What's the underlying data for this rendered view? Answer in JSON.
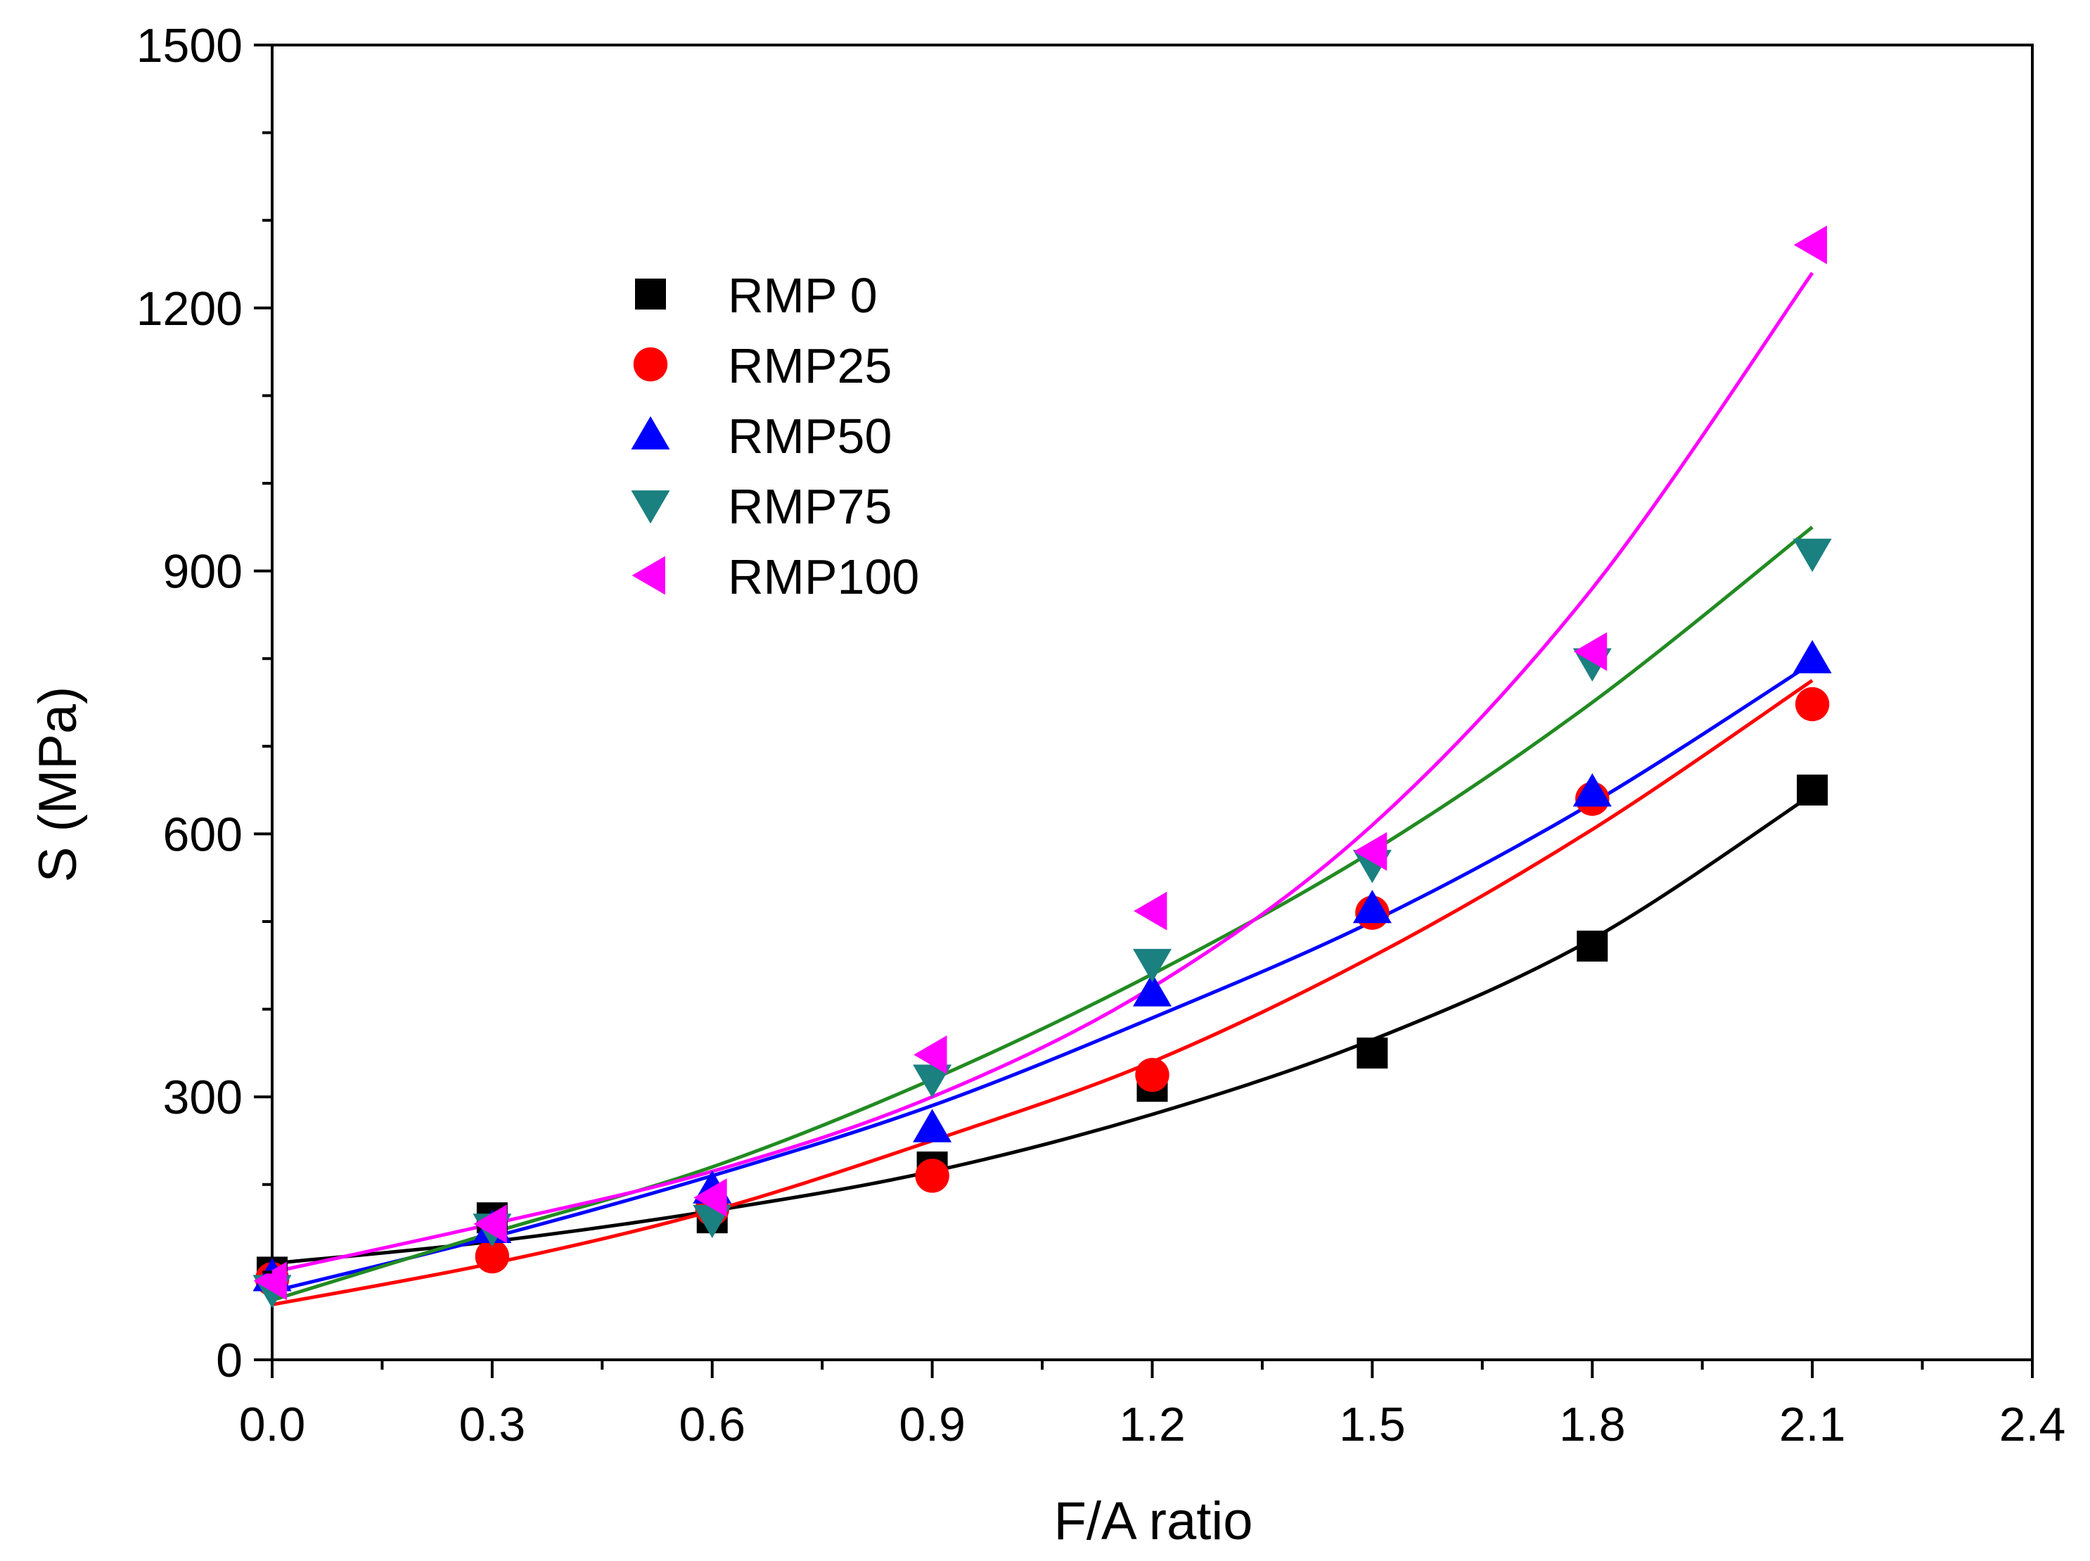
{
  "chart_data": {
    "type": "scatter",
    "title": "",
    "xlabel": "F/A ratio",
    "ylabel": "S (MPa)",
    "xlim": [
      0.0,
      2.4
    ],
    "ylim": [
      0,
      1500
    ],
    "xticks": [
      "0.0",
      "0.3",
      "0.6",
      "0.9",
      "1.2",
      "1.5",
      "1.8",
      "2.1",
      "2.4"
    ],
    "yticks": [
      "0",
      "300",
      "600",
      "900",
      "1200",
      "1500"
    ],
    "grid": false,
    "legend_position": "upper-left",
    "x": [
      0.0,
      0.3,
      0.6,
      0.9,
      1.2,
      1.5,
      1.8,
      2.1
    ],
    "series": [
      {
        "name": "RMP 0",
        "marker": "square",
        "color": "#000000",
        "values": [
          100,
          162,
          162,
          220,
          312,
          350,
          472,
          650
        ],
        "fit": [
          110,
          135,
          170,
          215,
          280,
          365,
          480,
          645
        ]
      },
      {
        "name": "RMP25",
        "marker": "circle",
        "color": "#ff0000",
        "values": [
          92,
          118,
          172,
          210,
          325,
          510,
          640,
          748
        ],
        "fit": [
          63,
          110,
          170,
          250,
          340,
          460,
          605,
          775
        ]
      },
      {
        "name": "RMP50",
        "marker": "triangle-up",
        "color": "#0000ff",
        "values": [
          95,
          150,
          195,
          265,
          420,
          515,
          648,
          800
        ],
        "fit": [
          78,
          140,
          210,
          290,
          390,
          500,
          635,
          795
        ]
      },
      {
        "name": "RMP75",
        "marker": "triangle-down",
        "color": "#1a8080",
        "values": [
          80,
          150,
          160,
          320,
          452,
          565,
          795,
          920
        ],
        "fit": [
          68,
          145,
          220,
          320,
          440,
          580,
          750,
          950
        ]
      },
      {
        "name": "RMP100",
        "marker": "triangle-left",
        "color": "#ff00ff",
        "values": [
          90,
          155,
          185,
          348,
          512,
          580,
          808,
          1272
        ],
        "fit": [
          100,
          155,
          215,
          300,
          425,
          610,
          880,
          1240
        ]
      }
    ],
    "fit_line_colors": [
      "#000000",
      "#ff0000",
      "#0000ff",
      "#228b22",
      "#ff00ff"
    ]
  }
}
